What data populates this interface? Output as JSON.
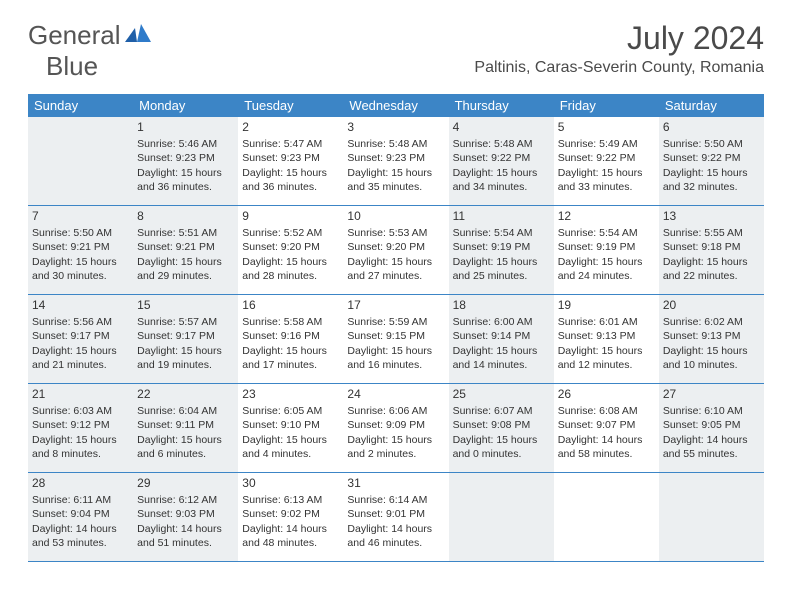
{
  "brand": {
    "text1": "General",
    "text2": "Blue"
  },
  "title": "July 2024",
  "location": "Paltinis, Caras-Severin County, Romania",
  "colors": {
    "header_bg": "#3c85c6",
    "header_text": "#ffffff",
    "shade_bg": "#eceff1",
    "border": "#3c85c6",
    "brand_gray": "#555555",
    "brand_blue": "#2f7bca",
    "body_text": "#333333"
  },
  "day_names": [
    "Sunday",
    "Monday",
    "Tuesday",
    "Wednesday",
    "Thursday",
    "Friday",
    "Saturday"
  ],
  "weeks": [
    [
      {
        "n": "",
        "shaded": true
      },
      {
        "n": "1",
        "shaded": true,
        "sr": "Sunrise: 5:46 AM",
        "ss": "Sunset: 9:23 PM",
        "d1": "Daylight: 15 hours",
        "d2": "and 36 minutes."
      },
      {
        "n": "2",
        "shaded": false,
        "sr": "Sunrise: 5:47 AM",
        "ss": "Sunset: 9:23 PM",
        "d1": "Daylight: 15 hours",
        "d2": "and 36 minutes."
      },
      {
        "n": "3",
        "shaded": false,
        "sr": "Sunrise: 5:48 AM",
        "ss": "Sunset: 9:23 PM",
        "d1": "Daylight: 15 hours",
        "d2": "and 35 minutes."
      },
      {
        "n": "4",
        "shaded": true,
        "sr": "Sunrise: 5:48 AM",
        "ss": "Sunset: 9:22 PM",
        "d1": "Daylight: 15 hours",
        "d2": "and 34 minutes."
      },
      {
        "n": "5",
        "shaded": false,
        "sr": "Sunrise: 5:49 AM",
        "ss": "Sunset: 9:22 PM",
        "d1": "Daylight: 15 hours",
        "d2": "and 33 minutes."
      },
      {
        "n": "6",
        "shaded": true,
        "sr": "Sunrise: 5:50 AM",
        "ss": "Sunset: 9:22 PM",
        "d1": "Daylight: 15 hours",
        "d2": "and 32 minutes."
      }
    ],
    [
      {
        "n": "7",
        "shaded": true,
        "sr": "Sunrise: 5:50 AM",
        "ss": "Sunset: 9:21 PM",
        "d1": "Daylight: 15 hours",
        "d2": "and 30 minutes."
      },
      {
        "n": "8",
        "shaded": true,
        "sr": "Sunrise: 5:51 AM",
        "ss": "Sunset: 9:21 PM",
        "d1": "Daylight: 15 hours",
        "d2": "and 29 minutes."
      },
      {
        "n": "9",
        "shaded": false,
        "sr": "Sunrise: 5:52 AM",
        "ss": "Sunset: 9:20 PM",
        "d1": "Daylight: 15 hours",
        "d2": "and 28 minutes."
      },
      {
        "n": "10",
        "shaded": false,
        "sr": "Sunrise: 5:53 AM",
        "ss": "Sunset: 9:20 PM",
        "d1": "Daylight: 15 hours",
        "d2": "and 27 minutes."
      },
      {
        "n": "11",
        "shaded": true,
        "sr": "Sunrise: 5:54 AM",
        "ss": "Sunset: 9:19 PM",
        "d1": "Daylight: 15 hours",
        "d2": "and 25 minutes."
      },
      {
        "n": "12",
        "shaded": false,
        "sr": "Sunrise: 5:54 AM",
        "ss": "Sunset: 9:19 PM",
        "d1": "Daylight: 15 hours",
        "d2": "and 24 minutes."
      },
      {
        "n": "13",
        "shaded": true,
        "sr": "Sunrise: 5:55 AM",
        "ss": "Sunset: 9:18 PM",
        "d1": "Daylight: 15 hours",
        "d2": "and 22 minutes."
      }
    ],
    [
      {
        "n": "14",
        "shaded": true,
        "sr": "Sunrise: 5:56 AM",
        "ss": "Sunset: 9:17 PM",
        "d1": "Daylight: 15 hours",
        "d2": "and 21 minutes."
      },
      {
        "n": "15",
        "shaded": true,
        "sr": "Sunrise: 5:57 AM",
        "ss": "Sunset: 9:17 PM",
        "d1": "Daylight: 15 hours",
        "d2": "and 19 minutes."
      },
      {
        "n": "16",
        "shaded": false,
        "sr": "Sunrise: 5:58 AM",
        "ss": "Sunset: 9:16 PM",
        "d1": "Daylight: 15 hours",
        "d2": "and 17 minutes."
      },
      {
        "n": "17",
        "shaded": false,
        "sr": "Sunrise: 5:59 AM",
        "ss": "Sunset: 9:15 PM",
        "d1": "Daylight: 15 hours",
        "d2": "and 16 minutes."
      },
      {
        "n": "18",
        "shaded": true,
        "sr": "Sunrise: 6:00 AM",
        "ss": "Sunset: 9:14 PM",
        "d1": "Daylight: 15 hours",
        "d2": "and 14 minutes."
      },
      {
        "n": "19",
        "shaded": false,
        "sr": "Sunrise: 6:01 AM",
        "ss": "Sunset: 9:13 PM",
        "d1": "Daylight: 15 hours",
        "d2": "and 12 minutes."
      },
      {
        "n": "20",
        "shaded": true,
        "sr": "Sunrise: 6:02 AM",
        "ss": "Sunset: 9:13 PM",
        "d1": "Daylight: 15 hours",
        "d2": "and 10 minutes."
      }
    ],
    [
      {
        "n": "21",
        "shaded": true,
        "sr": "Sunrise: 6:03 AM",
        "ss": "Sunset: 9:12 PM",
        "d1": "Daylight: 15 hours",
        "d2": "and 8 minutes."
      },
      {
        "n": "22",
        "shaded": true,
        "sr": "Sunrise: 6:04 AM",
        "ss": "Sunset: 9:11 PM",
        "d1": "Daylight: 15 hours",
        "d2": "and 6 minutes."
      },
      {
        "n": "23",
        "shaded": false,
        "sr": "Sunrise: 6:05 AM",
        "ss": "Sunset: 9:10 PM",
        "d1": "Daylight: 15 hours",
        "d2": "and 4 minutes."
      },
      {
        "n": "24",
        "shaded": false,
        "sr": "Sunrise: 6:06 AM",
        "ss": "Sunset: 9:09 PM",
        "d1": "Daylight: 15 hours",
        "d2": "and 2 minutes."
      },
      {
        "n": "25",
        "shaded": true,
        "sr": "Sunrise: 6:07 AM",
        "ss": "Sunset: 9:08 PM",
        "d1": "Daylight: 15 hours",
        "d2": "and 0 minutes."
      },
      {
        "n": "26",
        "shaded": false,
        "sr": "Sunrise: 6:08 AM",
        "ss": "Sunset: 9:07 PM",
        "d1": "Daylight: 14 hours",
        "d2": "and 58 minutes."
      },
      {
        "n": "27",
        "shaded": true,
        "sr": "Sunrise: 6:10 AM",
        "ss": "Sunset: 9:05 PM",
        "d1": "Daylight: 14 hours",
        "d2": "and 55 minutes."
      }
    ],
    [
      {
        "n": "28",
        "shaded": true,
        "sr": "Sunrise: 6:11 AM",
        "ss": "Sunset: 9:04 PM",
        "d1": "Daylight: 14 hours",
        "d2": "and 53 minutes."
      },
      {
        "n": "29",
        "shaded": true,
        "sr": "Sunrise: 6:12 AM",
        "ss": "Sunset: 9:03 PM",
        "d1": "Daylight: 14 hours",
        "d2": "and 51 minutes."
      },
      {
        "n": "30",
        "shaded": false,
        "sr": "Sunrise: 6:13 AM",
        "ss": "Sunset: 9:02 PM",
        "d1": "Daylight: 14 hours",
        "d2": "and 48 minutes."
      },
      {
        "n": "31",
        "shaded": false,
        "sr": "Sunrise: 6:14 AM",
        "ss": "Sunset: 9:01 PM",
        "d1": "Daylight: 14 hours",
        "d2": "and 46 minutes."
      },
      {
        "n": "",
        "shaded": true
      },
      {
        "n": "",
        "shaded": false
      },
      {
        "n": "",
        "shaded": true
      }
    ]
  ]
}
